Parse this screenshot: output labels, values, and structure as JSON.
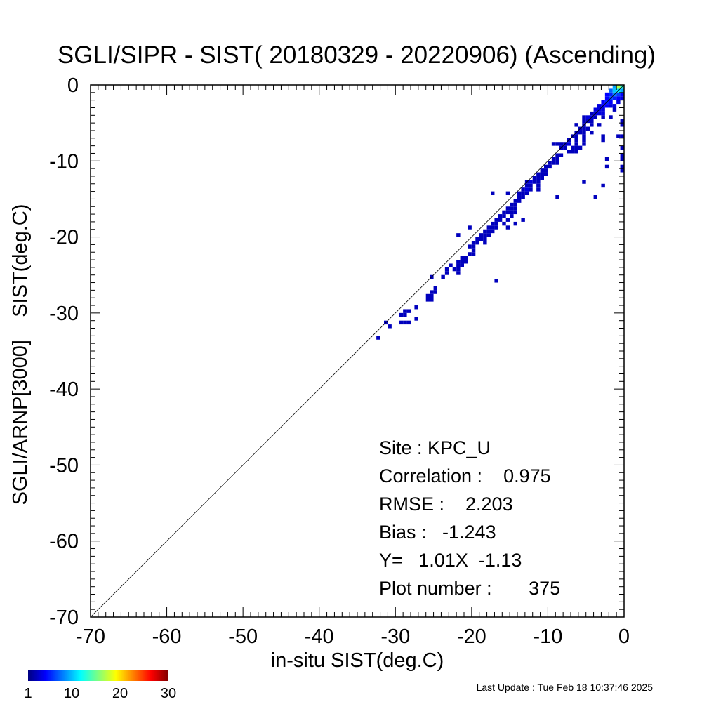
{
  "chart_data": {
    "type": "heatmap",
    "title": "SGLI/SIPR - SIST( 20180329 - 20220906) (Ascending)",
    "xlabel": "in-situ SIST(deg.C)",
    "ylabel": "SGLI/ARNP[3000]    SIST(deg.C)",
    "xlim": [
      -70,
      0
    ],
    "ylim": [
      -70,
      0
    ],
    "x_ticks": [
      "-70",
      "-60",
      "-50",
      "-40",
      "-30",
      "-20",
      "-10",
      "0"
    ],
    "y_ticks": [
      "-70",
      "-60",
      "-50",
      "-40",
      "-30",
      "-20",
      "-10",
      "0"
    ],
    "reference_line": "1:1",
    "colorbar": {
      "min": 1,
      "max": 30,
      "ticks": [
        "1",
        "10",
        "20",
        "30"
      ],
      "colormap": "jet"
    },
    "stats": [
      "Site : KPC_U",
      "Correlation :    0.975",
      "RMSE :    2.203",
      "Bias :   -1.243",
      "Y=   1.01X  -1.13",
      "Plot number :       375"
    ],
    "bins": [
      [
        -1,
        -0.5,
        16
      ],
      [
        -0.5,
        -0.5,
        12
      ],
      [
        -1.5,
        -0.5,
        8
      ],
      [
        -1,
        -1,
        10
      ],
      [
        -0.5,
        -1,
        8
      ],
      [
        -1.5,
        -1,
        9
      ],
      [
        -2,
        -1,
        6
      ],
      [
        -1.5,
        -1.5,
        7
      ],
      [
        -1,
        -1.5,
        5
      ],
      [
        -2,
        -1.5,
        4
      ],
      [
        -0.5,
        -1.5,
        3
      ],
      [
        -2.5,
        -1.5,
        3
      ],
      [
        -2,
        -2,
        5
      ],
      [
        -1.5,
        -2,
        4
      ],
      [
        -2.5,
        -2,
        3
      ],
      [
        -1,
        -2,
        3
      ],
      [
        -0.5,
        -2,
        2
      ],
      [
        -3,
        -2.5,
        3
      ],
      [
        -2.5,
        -2.5,
        4
      ],
      [
        -2,
        -2.5,
        3
      ],
      [
        -1,
        -2.5,
        2
      ],
      [
        -3,
        -3,
        3
      ],
      [
        -3.5,
        -3,
        2
      ],
      [
        -2.5,
        -3,
        3
      ],
      [
        -2,
        -3,
        2
      ],
      [
        -1.5,
        -3,
        2
      ],
      [
        -4,
        -3.5,
        2
      ],
      [
        -3.5,
        -3.5,
        2
      ],
      [
        -3,
        -3.5,
        2
      ],
      [
        -1.5,
        -3.5,
        1
      ],
      [
        -4,
        -4,
        2
      ],
      [
        -4.5,
        -4,
        1
      ],
      [
        -3.5,
        -4,
        2
      ],
      [
        -3,
        -4,
        2
      ],
      [
        -5.5,
        -4.5,
        1
      ],
      [
        -5,
        -4.5,
        2
      ],
      [
        -4.5,
        -4.5,
        2
      ],
      [
        -4,
        -4.5,
        1
      ],
      [
        -3,
        -4.5,
        1
      ],
      [
        -2,
        -4.5,
        1
      ],
      [
        -5.5,
        -5,
        1
      ],
      [
        -5,
        -5,
        1
      ],
      [
        -4.5,
        -5,
        1
      ],
      [
        -0.5,
        -5,
        1
      ],
      [
        -6.5,
        -5.5,
        1
      ],
      [
        -5.5,
        -5.5,
        1
      ],
      [
        -4.5,
        -5.5,
        1
      ],
      [
        -3.5,
        -5.5,
        1
      ],
      [
        -0.5,
        -5.5,
        1
      ],
      [
        -6,
        -6,
        1
      ],
      [
        -5.5,
        -6,
        1
      ],
      [
        -5,
        -6,
        1
      ],
      [
        -6.5,
        -6.5,
        1
      ],
      [
        -6,
        -6.5,
        1
      ],
      [
        -5.5,
        -6.5,
        1
      ],
      [
        -4.5,
        -6.5,
        1
      ],
      [
        -7,
        -7,
        1
      ],
      [
        -6.5,
        -7,
        1
      ],
      [
        -5.5,
        -7,
        1
      ],
      [
        -3,
        -7,
        1
      ],
      [
        -1,
        -7,
        1
      ],
      [
        -0.5,
        -7,
        1
      ],
      [
        -7.5,
        -7.5,
        1
      ],
      [
        -6.5,
        -7.5,
        1
      ],
      [
        -5.5,
        -7.5,
        1
      ],
      [
        -3,
        -7.5,
        1
      ],
      [
        -9.5,
        -8,
        1
      ],
      [
        -9,
        -8,
        1
      ],
      [
        -8.5,
        -8,
        1
      ],
      [
        -8,
        -8,
        1
      ],
      [
        -7.5,
        -8,
        2
      ],
      [
        -6.5,
        -8,
        1
      ],
      [
        -5.5,
        -8,
        1
      ],
      [
        -8.5,
        -8.5,
        1
      ],
      [
        -8,
        -8.5,
        1
      ],
      [
        -7,
        -8.5,
        1
      ],
      [
        -6.5,
        -8.5,
        1
      ],
      [
        -6,
        -8.5,
        1
      ],
      [
        -0.5,
        -8.5,
        1
      ],
      [
        -7.5,
        -9,
        1
      ],
      [
        -7,
        -9,
        1
      ],
      [
        -6.5,
        -9,
        1
      ],
      [
        -9,
        -9.5,
        1
      ],
      [
        -8.5,
        -9.5,
        1
      ],
      [
        -0.5,
        -9.5,
        1
      ],
      [
        -9.5,
        -10,
        1
      ],
      [
        -9,
        -10,
        1
      ],
      [
        -2.5,
        -10,
        1
      ],
      [
        -0.5,
        -10,
        1
      ],
      [
        -10,
        -10.5,
        1
      ],
      [
        -9.5,
        -10.5,
        1
      ],
      [
        -9,
        -10.5,
        1
      ],
      [
        -10.5,
        -11,
        1
      ],
      [
        -10,
        -11,
        1
      ],
      [
        -2.5,
        -11,
        1
      ],
      [
        -0.5,
        -11,
        1
      ],
      [
        -11,
        -11.5,
        1
      ],
      [
        -10.5,
        -11.5,
        1
      ],
      [
        -0.5,
        -11.5,
        1
      ],
      [
        -11.5,
        -12,
        1
      ],
      [
        -11,
        -12,
        1
      ],
      [
        -10.5,
        -12,
        1
      ],
      [
        -12,
        -12.5,
        1
      ],
      [
        -11.5,
        -12.5,
        1
      ],
      [
        -11,
        -12.5,
        1
      ],
      [
        -13,
        -13,
        1
      ],
      [
        -12.5,
        -13,
        2
      ],
      [
        -12,
        -13,
        1
      ],
      [
        -11.5,
        -13,
        1
      ],
      [
        -5.5,
        -13,
        1
      ],
      [
        -13,
        -13.5,
        1
      ],
      [
        -12.5,
        -13.5,
        1
      ],
      [
        -11.5,
        -13.5,
        1
      ],
      [
        -3,
        -13.5,
        1
      ],
      [
        -13.5,
        -14,
        1
      ],
      [
        -13,
        -14,
        2
      ],
      [
        -12.5,
        -14,
        1
      ],
      [
        -11.5,
        -14,
        1
      ],
      [
        -17.5,
        -14.5,
        1
      ],
      [
        -14,
        -14.5,
        1
      ],
      [
        -13.5,
        -14.5,
        1
      ],
      [
        -13,
        -14.5,
        1
      ],
      [
        -15.5,
        -14.5,
        1
      ],
      [
        -14,
        -15,
        1
      ],
      [
        -13.5,
        -15,
        1
      ],
      [
        -9,
        -15,
        1
      ],
      [
        -4,
        -15,
        1
      ],
      [
        -14.5,
        -15.5,
        1
      ],
      [
        -14,
        -15.5,
        1
      ],
      [
        -15,
        -16,
        1
      ],
      [
        -14.5,
        -16,
        1
      ],
      [
        -15.5,
        -16.5,
        1
      ],
      [
        -15,
        -16.5,
        1
      ],
      [
        -14.5,
        -16.5,
        1
      ],
      [
        -16,
        -17,
        1
      ],
      [
        -15.5,
        -17,
        1
      ],
      [
        -15,
        -17,
        1
      ],
      [
        -14.5,
        -17,
        1
      ],
      [
        -16.5,
        -17.5,
        1
      ],
      [
        -16,
        -17.5,
        1
      ],
      [
        -15,
        -17.5,
        1
      ],
      [
        -17,
        -18,
        1
      ],
      [
        -16.5,
        -18,
        1
      ],
      [
        -15.5,
        -18,
        1
      ],
      [
        -13.5,
        -18,
        1
      ],
      [
        -17.5,
        -18.5,
        1
      ],
      [
        -17,
        -18.5,
        1
      ],
      [
        -16,
        -18.5,
        1
      ],
      [
        -14.5,
        -18.5,
        1
      ],
      [
        -18,
        -19,
        1
      ],
      [
        -17.5,
        -19,
        1
      ],
      [
        -17,
        -19,
        1
      ],
      [
        -15.5,
        -19,
        1
      ],
      [
        -20.5,
        -19,
        1
      ],
      [
        -18.5,
        -19.5,
        1
      ],
      [
        -18,
        -19.5,
        1
      ],
      [
        -17.5,
        -19.5,
        1
      ],
      [
        -19,
        -20,
        1
      ],
      [
        -18.5,
        -20,
        1
      ],
      [
        -18,
        -20,
        1
      ],
      [
        -22,
        -20,
        1
      ],
      [
        -19.5,
        -20.5,
        1
      ],
      [
        -19,
        -20.5,
        1
      ],
      [
        -18.5,
        -20.5,
        1
      ],
      [
        -20,
        -21,
        1
      ],
      [
        -19.5,
        -21,
        1
      ],
      [
        -18.5,
        -21,
        1
      ],
      [
        -20.5,
        -21.5,
        1
      ],
      [
        -20,
        -21.5,
        1
      ],
      [
        -20,
        -22,
        1
      ],
      [
        -20.5,
        -22.5,
        1
      ],
      [
        -20,
        -22.5,
        1
      ],
      [
        -21.5,
        -23,
        1
      ],
      [
        -21,
        -23,
        1
      ],
      [
        -22,
        -23.5,
        1
      ],
      [
        -21.5,
        -23.5,
        1
      ],
      [
        -21,
        -23.5,
        1
      ],
      [
        -23,
        -24,
        1
      ],
      [
        -22,
        -24,
        1
      ],
      [
        -21.5,
        -24,
        1
      ],
      [
        -23.5,
        -24.5,
        1
      ],
      [
        -22.5,
        -24.5,
        1
      ],
      [
        -22,
        -24.5,
        1
      ],
      [
        -23.5,
        -25,
        1
      ],
      [
        -22,
        -25,
        1
      ],
      [
        -25.5,
        -25.5,
        1
      ],
      [
        -24,
        -25.5,
        1
      ],
      [
        -17,
        -26,
        1
      ],
      [
        -25,
        -27,
        1
      ],
      [
        -25.5,
        -27.5,
        1
      ],
      [
        -25,
        -27.5,
        1
      ],
      [
        -26,
        -28,
        1
      ],
      [
        -25.5,
        -28,
        1
      ],
      [
        -26,
        -28.5,
        1
      ],
      [
        -25.5,
        -28.5,
        1
      ],
      [
        -27.5,
        -29.5,
        1
      ],
      [
        -29,
        -30,
        1
      ],
      [
        -28.5,
        -30,
        1
      ],
      [
        -29.5,
        -30.5,
        1
      ],
      [
        -29,
        -30.5,
        1
      ],
      [
        -27.5,
        -31,
        1
      ],
      [
        -29.5,
        -31.5,
        1
      ],
      [
        -29,
        -31.5,
        1
      ],
      [
        -28.5,
        -31.5,
        1
      ],
      [
        -31.5,
        -31.5,
        1
      ],
      [
        -31,
        -32,
        1
      ],
      [
        -32.5,
        -33.5,
        1
      ]
    ]
  },
  "footer": {
    "last_update": "Last Update : Tue Feb 18 10:37:46 2025"
  }
}
